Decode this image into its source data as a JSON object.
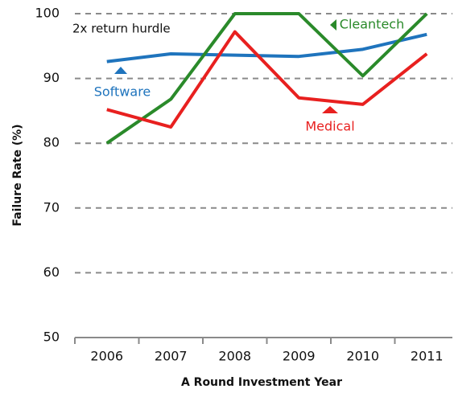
{
  "chart_data": {
    "type": "line",
    "categories": [
      "2006",
      "2007",
      "2008",
      "2009",
      "2010",
      "2011"
    ],
    "series": [
      {
        "name": "Software",
        "color": "#1f74bd",
        "values": [
          92.6,
          93.8,
          93.6,
          93.4,
          94.5,
          96.8
        ]
      },
      {
        "name": "Cleantech",
        "color": "#2a8a2a",
        "values": [
          80,
          86.8,
          100,
          100,
          90.4,
          100
        ]
      },
      {
        "name": "Medical",
        "color": "#e8201f",
        "values": [
          85.2,
          82.5,
          97.2,
          87,
          86,
          93.8
        ]
      }
    ],
    "annotation": "2x return hurdle",
    "xlabel": "A Round Investment Year",
    "ylabel": "Failure Rate (%)",
    "ylim": [
      50,
      100
    ],
    "yticks": [
      50,
      60,
      70,
      80,
      90,
      100
    ],
    "grid": true
  }
}
